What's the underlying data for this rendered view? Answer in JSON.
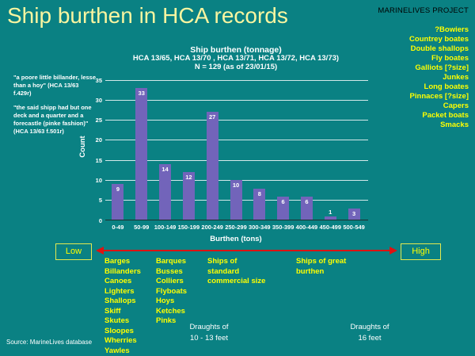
{
  "slide": {
    "title": "Ship burthen in HCA records",
    "source": "Source: MarineLives database"
  },
  "right_panel": {
    "header": "MARINELIVES PROJECT",
    "ship_types": [
      "?Bowiers",
      "Countrey boates",
      "Double shallops",
      "Fly boates",
      "Galliots [?size]",
      "Junkes",
      "Long boates",
      "Pinnaces [?size]",
      "Capers",
      "Packet boats",
      "Smacks"
    ]
  },
  "quotes": [
    "\"a poore little billander, lesse than a hoy\" (HCA 13/63 f.429r)",
    "\"the said shipp had but one deck and a quarter and a forecastle (pinke fashion)\" (HCA 13/63 f.501r)"
  ],
  "chart_data": {
    "type": "bar",
    "title": "Ship burthen (tonnage)",
    "subtitle": "HCA 13/65, HCA 13/70 , HCA 13/71, HCA 13/72, HCA 13/73)",
    "note": "N = 129 (as of 23/01/15)",
    "categories": [
      "0-49",
      "50-99",
      "100-149",
      "150-199",
      "200-249",
      "250-299",
      "300-349",
      "350-399",
      "400-449",
      "450-499",
      "500-549"
    ],
    "values": [
      9,
      33,
      14,
      12,
      27,
      10,
      8,
      6,
      6,
      1,
      3
    ],
    "xlabel": "Burthen (tons)",
    "ylabel": "Count",
    "ylim": [
      0,
      35
    ],
    "ytick_step": 5,
    "grid": true,
    "legend": false,
    "bar_color": "#7264ba"
  },
  "scale": {
    "low_label": "Low",
    "high_label": "High",
    "arrow_color": "#dd1212"
  },
  "bottom": {
    "columns": [
      {
        "items": [
          "Barges",
          "Billanders",
          "Canoes",
          "Lighters",
          "Shallops",
          "Skiff",
          "Skutes",
          "Sloopes",
          "Wherries",
          "Yawles"
        ]
      },
      {
        "items": [
          "Barques",
          "Busses",
          "Colliers",
          "Flyboats",
          "Hoys",
          "Ketches",
          "Pinks"
        ]
      },
      {
        "items": [
          "Ships of",
          "standard",
          "commercial size"
        ]
      },
      {
        "items": [
          "Ships of great",
          "burthen"
        ]
      }
    ],
    "draughts": [
      {
        "lines": [
          "Draughts of",
          "10 - 13 feet"
        ]
      },
      {
        "lines": [
          "Draughts of",
          "16 feet"
        ]
      }
    ]
  },
  "colors": {
    "background": "#0a8183",
    "title_text": "#f9f5a0",
    "accent_yellow": "#ffff00",
    "bar_purple": "#7264ba",
    "arrow_red": "#dd1212",
    "chart_text": "#ffffff"
  }
}
